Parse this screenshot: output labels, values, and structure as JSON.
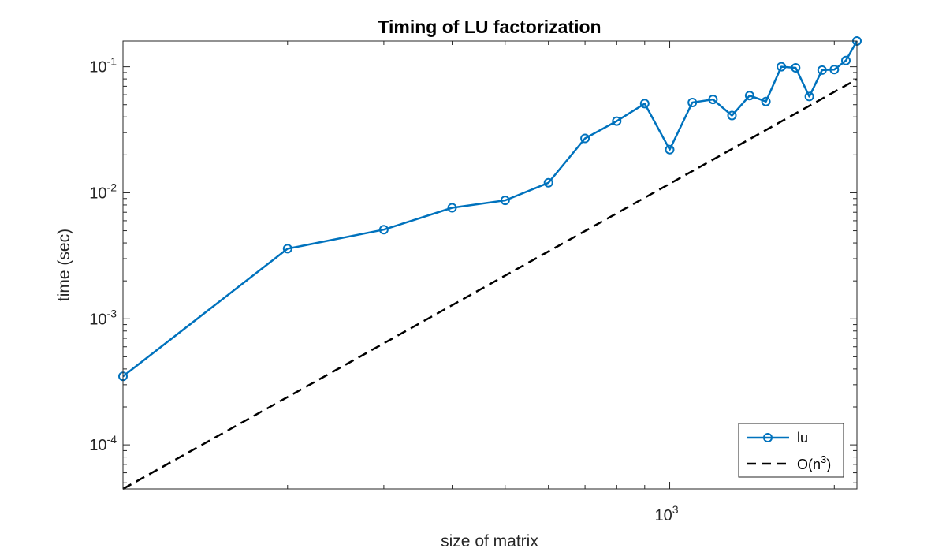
{
  "chart_data": {
    "type": "line",
    "title": "Timing of LU factorization",
    "xlabel": "size of matrix",
    "ylabel": "time (sec)",
    "xscale": "log",
    "yscale": "log",
    "xlim": [
      100,
      2200
    ],
    "ylim": [
      4.47e-05,
      0.16
    ],
    "x_ticks": [
      {
        "base": "10",
        "exp": "3",
        "value": 1000
      }
    ],
    "y_ticks": [
      {
        "base": "10",
        "exp": "-4",
        "value": 0.0001
      },
      {
        "base": "10",
        "exp": "-3",
        "value": 0.001
      },
      {
        "base": "10",
        "exp": "-2",
        "value": 0.01
      },
      {
        "base": "10",
        "exp": "-1",
        "value": 0.1
      }
    ],
    "grid": false,
    "legend_position": "bottom-right",
    "series": [
      {
        "name": "lu",
        "color": "#0072BD",
        "style": "solid",
        "marker": "circle",
        "x": [
          100,
          200,
          300,
          400,
          500,
          600,
          700,
          800,
          900,
          1000,
          1100,
          1200,
          1300,
          1400,
          1500,
          1600,
          1700,
          1800,
          1900,
          2000,
          2100,
          2200
        ],
        "y": [
          0.00035,
          0.0036,
          0.0051,
          0.0076,
          0.0087,
          0.012,
          0.027,
          0.037,
          0.051,
          0.022,
          0.052,
          0.055,
          0.041,
          0.059,
          0.053,
          0.1,
          0.098,
          0.058,
          0.094,
          0.095,
          0.112,
          0.16
        ]
      },
      {
        "name": "O(n",
        "name_sup": "3",
        "name_suffix": ")",
        "color": "#000000",
        "style": "dashed",
        "marker": "none",
        "x": [
          100,
          2200
        ],
        "y": [
          4.47e-05,
          0.0795
        ]
      }
    ]
  }
}
